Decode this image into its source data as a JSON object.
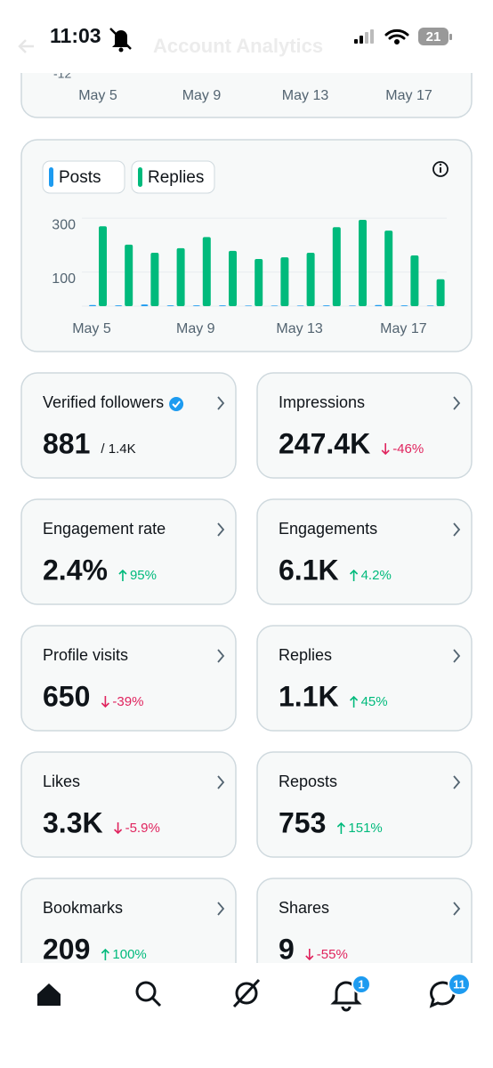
{
  "status_bar": {
    "time": "11:03",
    "battery": "21"
  },
  "header": {
    "title": "Account Analytics"
  },
  "previous_card": {
    "y_label": "-12",
    "x_labels": [
      "May 5",
      "May 9",
      "May 13",
      "May 17"
    ]
  },
  "chart_data": {
    "type": "bar",
    "categories": [
      "May 5",
      null,
      null,
      null,
      "May 9",
      null,
      null,
      null,
      "May 13",
      null,
      null,
      null,
      "May 17",
      null
    ],
    "series": [
      {
        "name": "Posts",
        "color": "#1d9bf0",
        "values": [
          4,
          3,
          6,
          3,
          3,
          3,
          2,
          2,
          2,
          3,
          2,
          4,
          3,
          2
        ]
      },
      {
        "name": "Replies",
        "color": "#00ba7c",
        "values": [
          296,
          228,
          198,
          215,
          256,
          205,
          175,
          181,
          198,
          293,
          320,
          280,
          188,
          100
        ]
      }
    ],
    "ylim": [
      0,
      330
    ],
    "yticks": [
      100,
      300
    ],
    "grid": true
  },
  "stats": [
    {
      "title": "Verified followers",
      "value": "881",
      "extra": "/ 1.4K",
      "verified": true
    },
    {
      "title": "Impressions",
      "value": "247.4K",
      "change": "-46%",
      "trend": "down"
    },
    {
      "title": "Engagement rate",
      "value": "2.4%",
      "change": "95%",
      "trend": "up"
    },
    {
      "title": "Engagements",
      "value": "6.1K",
      "change": "4.2%",
      "trend": "up"
    },
    {
      "title": "Profile visits",
      "value": "650",
      "change": "-39%",
      "trend": "down"
    },
    {
      "title": "Replies",
      "value": "1.1K",
      "change": "45%",
      "trend": "up"
    },
    {
      "title": "Likes",
      "value": "3.3K",
      "change": "-5.9%",
      "trend": "down"
    },
    {
      "title": "Reposts",
      "value": "753",
      "change": "151%",
      "trend": "up"
    },
    {
      "title": "Bookmarks",
      "value": "209",
      "change": "100%",
      "trend": "up"
    },
    {
      "title": "Shares",
      "value": "9",
      "change": "-55%",
      "trend": "down"
    }
  ],
  "nav": {
    "notifications_badge": "1",
    "messages_badge": "11"
  }
}
